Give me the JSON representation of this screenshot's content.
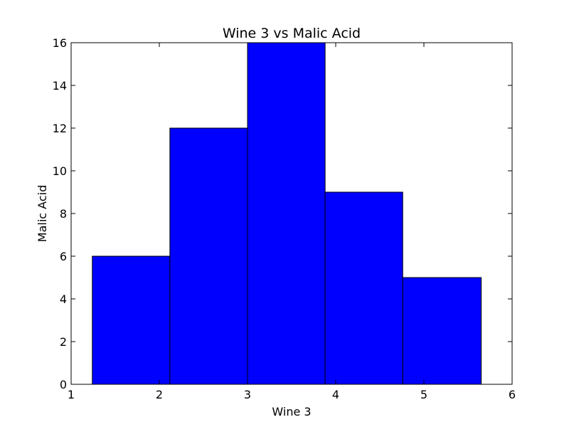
{
  "chart_data": {
    "type": "bar",
    "title": "Wine 3 vs Malic Acid",
    "xlabel": "Wine 3",
    "ylabel": "Malic Acid",
    "xlim": [
      1,
      6
    ],
    "ylim": [
      0,
      16
    ],
    "xticks": [
      1,
      2,
      3,
      4,
      5,
      6
    ],
    "yticks": [
      0,
      2,
      4,
      6,
      8,
      10,
      12,
      14,
      16
    ],
    "bins": [
      {
        "x0": 1.24,
        "x1": 2.12,
        "value": 6
      },
      {
        "x0": 2.12,
        "x1": 3.0,
        "value": 12
      },
      {
        "x0": 3.0,
        "x1": 3.88,
        "value": 16
      },
      {
        "x0": 3.88,
        "x1": 4.76,
        "value": 9
      },
      {
        "x0": 4.76,
        "x1": 5.65,
        "value": 5
      }
    ],
    "bar_color": "#0000ff",
    "edge_color": "#000000",
    "grid": false
  }
}
